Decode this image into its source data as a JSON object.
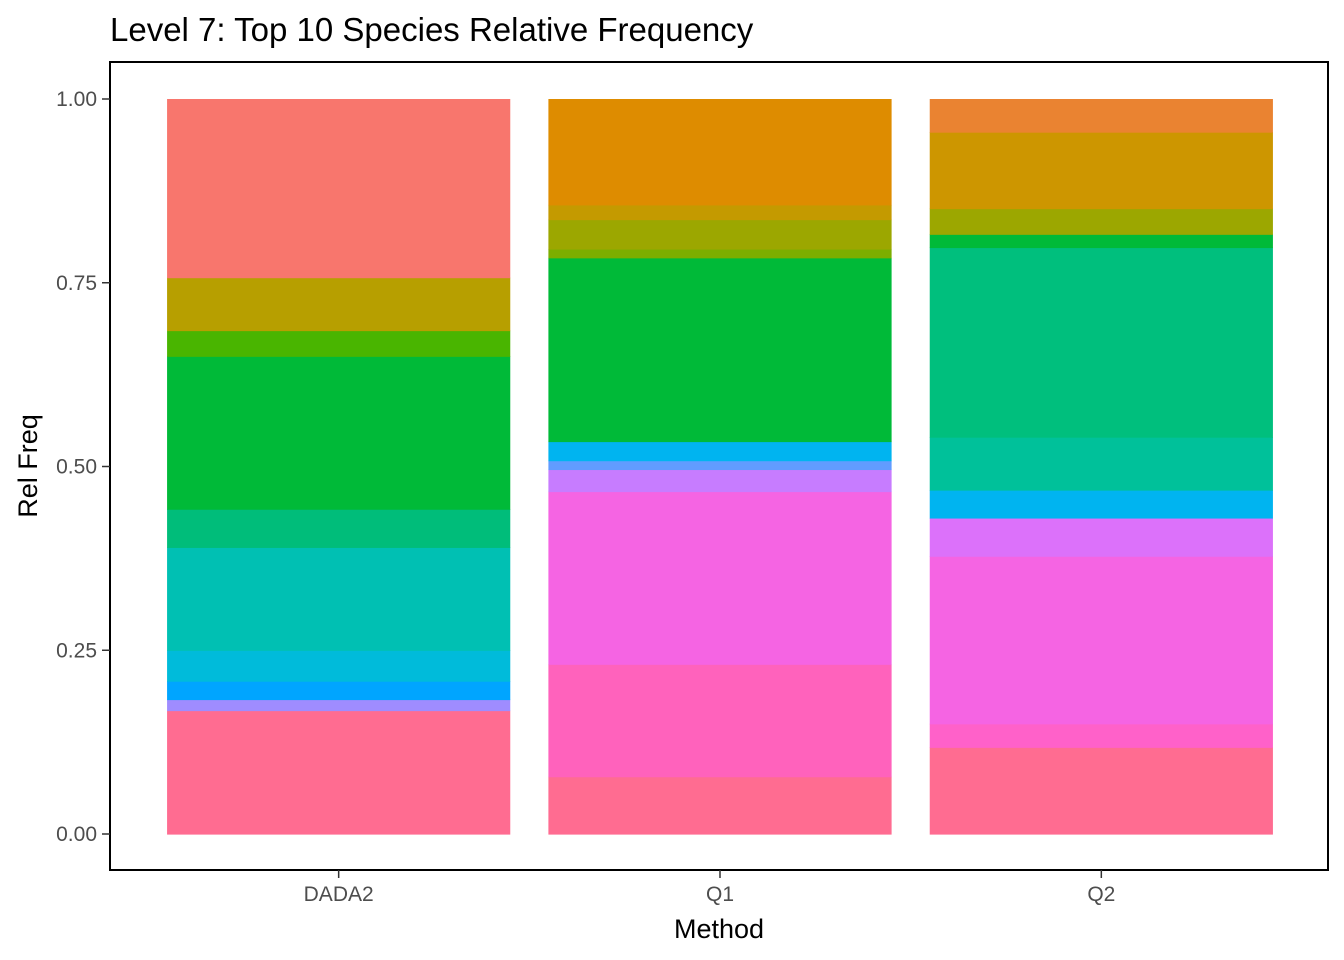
{
  "chart_data": {
    "type": "bar",
    "stacked": true,
    "title": "Level 7: Top 10 Species Relative Frequency",
    "xlabel": "Method",
    "ylabel": "Rel Freq",
    "categories": [
      "DADA2",
      "Q1",
      "Q2"
    ],
    "ylim": [
      0,
      1
    ],
    "yticks": [
      "0.00",
      "0.25",
      "0.50",
      "0.75",
      "1.00"
    ],
    "ytick_values": [
      0,
      0.25,
      0.5,
      0.75,
      1.0
    ],
    "grid": false,
    "legend": "none",
    "stacks": [
      {
        "category": "DADA2",
        "segments": [
          {
            "value": 0.168,
            "color": "#FF6C91"
          },
          {
            "value": 0.015,
            "color": "#9F8CFF"
          },
          {
            "value": 0.025,
            "color": "#00A5FF"
          },
          {
            "value": 0.042,
            "color": "#00BBDA"
          },
          {
            "value": 0.14,
            "color": "#00C0B3"
          },
          {
            "value": 0.052,
            "color": "#00BD7A"
          },
          {
            "value": 0.208,
            "color": "#00BA38"
          },
          {
            "value": 0.035,
            "color": "#49B500"
          },
          {
            "value": 0.072,
            "color": "#B79F00"
          },
          {
            "value": 0.243,
            "color": "#F8766D"
          }
        ]
      },
      {
        "category": "Q1",
        "segments": [
          {
            "value": 0.078,
            "color": "#FF6C91"
          },
          {
            "value": 0.153,
            "color": "#FF62BC"
          },
          {
            "value": 0.235,
            "color": "#F564E3"
          },
          {
            "value": 0.03,
            "color": "#C77CFF"
          },
          {
            "value": 0.012,
            "color": "#619CFF"
          },
          {
            "value": 0.026,
            "color": "#00B4F0"
          },
          {
            "value": 0.25,
            "color": "#00BA38"
          },
          {
            "value": 0.012,
            "color": "#7CAE00"
          },
          {
            "value": 0.04,
            "color": "#9CA700"
          },
          {
            "value": 0.02,
            "color": "#C49A00"
          },
          {
            "value": 0.144,
            "color": "#DE8C00"
          }
        ]
      },
      {
        "category": "Q2",
        "segments": [
          {
            "value": 0.118,
            "color": "#FF6C91"
          },
          {
            "value": 0.032,
            "color": "#FF61C9"
          },
          {
            "value": 0.228,
            "color": "#F564E3"
          },
          {
            "value": 0.052,
            "color": "#DC71FA"
          },
          {
            "value": 0.038,
            "color": "#00B4F0"
          },
          {
            "value": 0.072,
            "color": "#00C19A"
          },
          {
            "value": 0.258,
            "color": "#00BF7D"
          },
          {
            "value": 0.018,
            "color": "#00BA38"
          },
          {
            "value": 0.035,
            "color": "#9CA700"
          },
          {
            "value": 0.104,
            "color": "#CD9600"
          },
          {
            "value": 0.045,
            "color": "#EA8331"
          }
        ]
      }
    ]
  }
}
